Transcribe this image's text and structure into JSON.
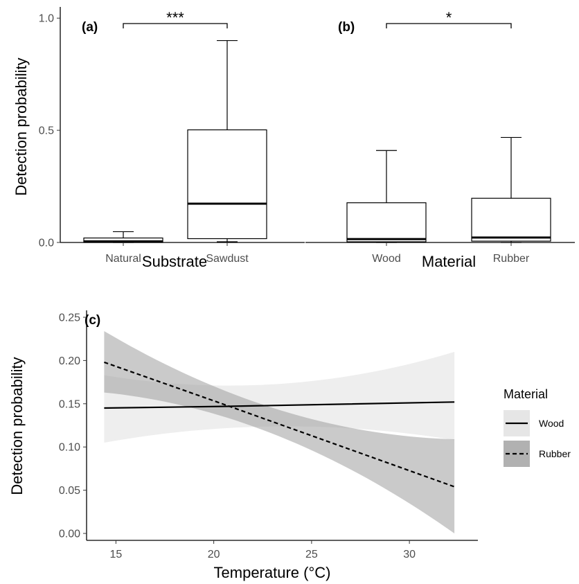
{
  "chart_data": [
    {
      "type": "box",
      "panel_label": "(a)",
      "xlabel": "Substrate",
      "ylabel": "Detection probability",
      "ylim": [
        0,
        1.05
      ],
      "yticks": [
        "0.0",
        "0.5",
        "1.0"
      ],
      "categories": [
        "Natural",
        "Sawdust"
      ],
      "boxes": [
        {
          "min": 0.0,
          "q1": 0.0,
          "median": 0.005,
          "q3": 0.02,
          "max": 0.048
        },
        {
          "min": 0.003,
          "q1": 0.017,
          "median": 0.173,
          "q3": 0.502,
          "max": 0.9
        }
      ],
      "significance": "***"
    },
    {
      "type": "box",
      "panel_label": "(b)",
      "xlabel": "Material",
      "ylabel": "",
      "ylim": [
        0,
        1.05
      ],
      "categories": [
        "Wood",
        "Rubber"
      ],
      "boxes": [
        {
          "min": 0.0,
          "q1": 0.003,
          "median": 0.015,
          "q3": 0.177,
          "max": 0.41
        },
        {
          "min": 0.0,
          "q1": 0.006,
          "median": 0.022,
          "q3": 0.197,
          "max": 0.468
        }
      ],
      "significance": "*"
    },
    {
      "type": "line",
      "panel_label": "(c)",
      "xlabel": "Temperature (°C)",
      "ylabel": "Detection probability",
      "xlim": [
        13.5,
        33.5
      ],
      "ylim": [
        -0.008,
        0.258
      ],
      "xticks": [
        "15",
        "20",
        "25",
        "30"
      ],
      "yticks": [
        "0.00",
        "0.05",
        "0.10",
        "0.15",
        "0.20",
        "0.25"
      ],
      "legend_title": "Material",
      "legend_position": "right",
      "series": [
        {
          "name": "Wood",
          "line_style": "solid",
          "band_color": "#e0e0e0",
          "x": [
            14.4,
            20.8,
            32.3
          ],
          "y": [
            0.145,
            0.147,
            0.152
          ],
          "lower": [
            0.105,
            0.122,
            0.108
          ],
          "upper": [
            0.183,
            0.171,
            0.21
          ]
        },
        {
          "name": "Rubber",
          "line_style": "dashed",
          "band_color": "#9e9e9e",
          "x": [
            14.4,
            20.8,
            32.3
          ],
          "y": [
            0.198,
            0.147,
            0.054
          ],
          "lower": [
            0.163,
            0.133,
            0.0
          ],
          "upper": [
            0.234,
            0.163,
            0.109
          ]
        }
      ]
    }
  ]
}
